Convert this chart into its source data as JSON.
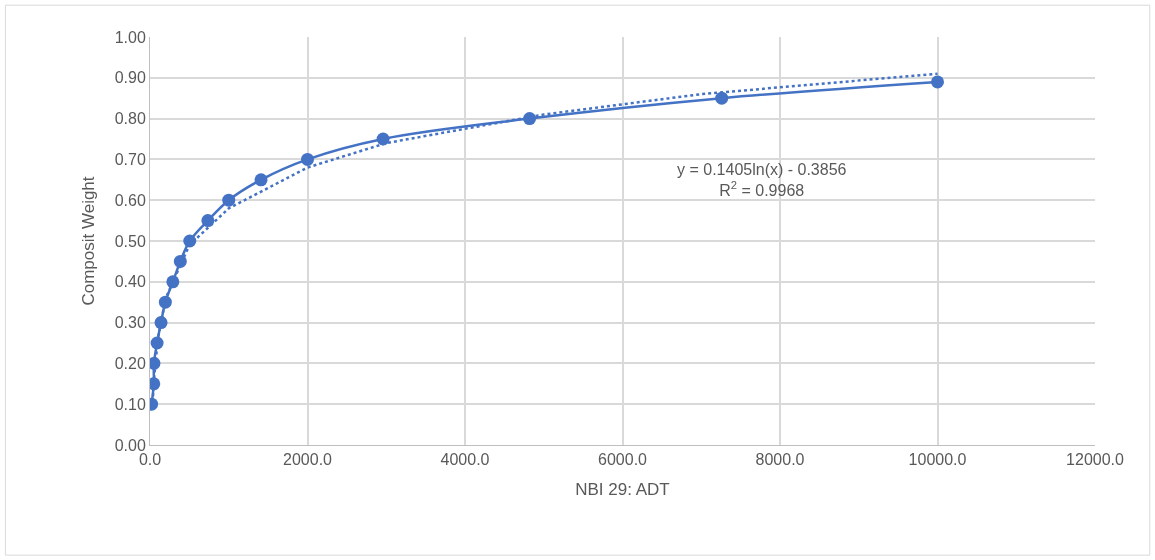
{
  "chart_data": {
    "type": "line",
    "xlabel": "NBI 29: ADT",
    "ylabel": "Composit Weight",
    "xlim": [
      0,
      12000
    ],
    "ylim": [
      0,
      1
    ],
    "xticks": [
      {
        "value": 0,
        "label": "0.0"
      },
      {
        "value": 2000,
        "label": "2000.0"
      },
      {
        "value": 4000,
        "label": "4000.0"
      },
      {
        "value": 6000,
        "label": "6000.0"
      },
      {
        "value": 8000,
        "label": "8000.0"
      },
      {
        "value": 10000,
        "label": "10000.0"
      },
      {
        "value": 12000,
        "label": "12000.0"
      }
    ],
    "yticks": [
      {
        "value": 0,
        "label": "0.00"
      },
      {
        "value": 0.1,
        "label": "0.10"
      },
      {
        "value": 0.2,
        "label": "0.20"
      },
      {
        "value": 0.3,
        "label": "0.30"
      },
      {
        "value": 0.4,
        "label": "0.40"
      },
      {
        "value": 0.5,
        "label": "0.50"
      },
      {
        "value": 0.6,
        "label": "0.60"
      },
      {
        "value": 0.7,
        "label": "0.70"
      },
      {
        "value": 0.8,
        "label": "0.80"
      },
      {
        "value": 0.9,
        "label": "0.90"
      },
      {
        "value": 1,
        "label": "1.00"
      }
    ],
    "grid": true,
    "series": [
      {
        "color": "#4472c4",
        "marker": "circle",
        "line_style": "solid",
        "x": [
          20,
          48,
          50,
          90,
          140,
          195,
          290,
          385,
          505,
          735,
          1000,
          1410,
          2000,
          2960,
          4820,
          7260,
          10000
        ],
        "values": [
          0.1,
          0.15,
          0.2,
          0.25,
          0.3,
          0.35,
          0.4,
          0.45,
          0.5,
          0.55,
          0.6,
          0.65,
          0.7,
          0.75,
          0.8,
          0.85,
          0.89
        ]
      },
      {
        "color": "#4472c4",
        "marker": "none",
        "line_style": "dotted",
        "x": [
          30,
          50,
          100,
          200,
          500,
          1000,
          2000,
          3000,
          5000,
          7000,
          10000
        ],
        "values": [
          0.09,
          0.16,
          0.26,
          0.36,
          0.49,
          0.58,
          0.68,
          0.74,
          0.81,
          0.86,
          0.91
        ]
      }
    ],
    "annotations": [
      "y = 0.1405ln(x) - 0.3856\nR$^{2}$ = 0.9968"
    ]
  }
}
